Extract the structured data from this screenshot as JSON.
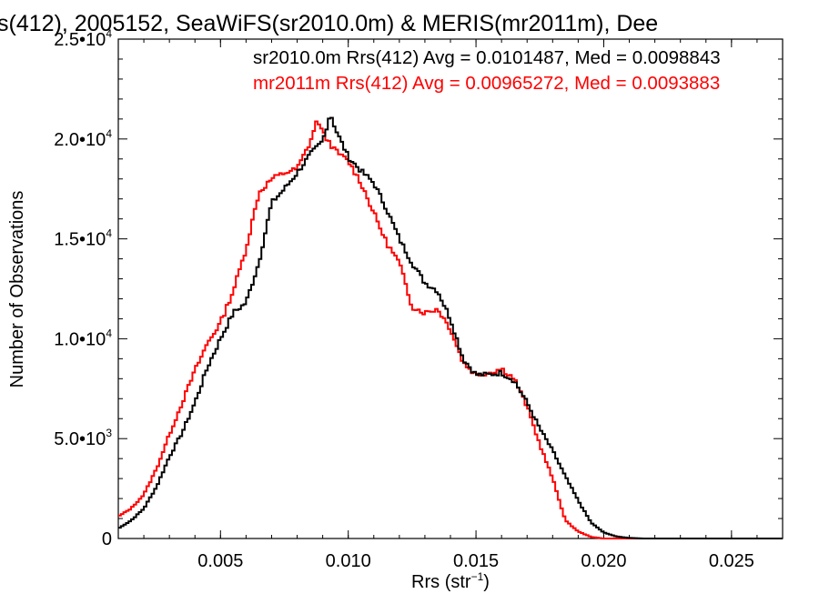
{
  "chart_data": {
    "type": "line",
    "title": "s(412), 2005152, SeaWiFS(sr2010.0m) & MERIS(mr2011m), Dee",
    "xlabel": "Rrs (str",
    "xlabel_sup": "−1",
    "xlabel_close": ")",
    "ylabel": "Number of Observations",
    "xlim": [
      0.001,
      0.027
    ],
    "ylim": [
      0,
      25000
    ],
    "grid": false,
    "x_ticks": [
      {
        "value": 0.005,
        "label": "0.005"
      },
      {
        "value": 0.01,
        "label": "0.010"
      },
      {
        "value": 0.015,
        "label": "0.015"
      },
      {
        "value": 0.02,
        "label": "0.020"
      },
      {
        "value": 0.025,
        "label": "0.025"
      }
    ],
    "y_ticks": [
      {
        "value": 0,
        "mant": "0",
        "exp": ""
      },
      {
        "value": 5000,
        "mant": "5.0•10",
        "exp": "3"
      },
      {
        "value": 10000,
        "mant": "1.0•10",
        "exp": "4"
      },
      {
        "value": 15000,
        "mant": "1.5•10",
        "exp": "4"
      },
      {
        "value": 20000,
        "mant": "2.0•10",
        "exp": "4"
      },
      {
        "value": 25000,
        "mant": "2.5•10",
        "exp": "4"
      }
    ],
    "legend": [
      {
        "text": "sr2010.0m Rrs(412) Avg = 0.0101487, Med = 0.0098843",
        "color": "#000000"
      },
      {
        "text": "mr2011m Rrs(412) Avg = 0.00965272, Med = 0.0093883",
        "color": "#ff0000"
      }
    ],
    "legend_placement": "top-right",
    "series": [
      {
        "color": "#000000",
        "x": [
          0.001,
          0.0015,
          0.002,
          0.0025,
          0.003,
          0.0035,
          0.004,
          0.0045,
          0.005,
          0.0055,
          0.006,
          0.0065,
          0.007,
          0.0075,
          0.008,
          0.0085,
          0.009,
          0.0093,
          0.0095,
          0.01,
          0.0105,
          0.011,
          0.0115,
          0.012,
          0.0125,
          0.013,
          0.0135,
          0.014,
          0.0145,
          0.015,
          0.0155,
          0.016,
          0.0165,
          0.017,
          0.0175,
          0.018,
          0.0185,
          0.019,
          0.0195,
          0.02,
          0.0205,
          0.021,
          0.0215,
          0.022,
          0.023,
          0.025,
          0.027
        ],
        "y": [
          500,
          900,
          1500,
          2600,
          4100,
          5300,
          6800,
          8600,
          10000,
          11300,
          11800,
          13800,
          16800,
          17500,
          18300,
          19200,
          19900,
          21300,
          20500,
          19100,
          18400,
          17800,
          16500,
          15000,
          13800,
          12800,
          12400,
          11000,
          9000,
          8200,
          8200,
          8300,
          7900,
          6800,
          5500,
          4400,
          3100,
          1900,
          800,
          300,
          100,
          30,
          0,
          0,
          0,
          0,
          0
        ]
      },
      {
        "color": "#ff0000",
        "x": [
          0.001,
          0.0015,
          0.002,
          0.0025,
          0.003,
          0.0035,
          0.004,
          0.0045,
          0.005,
          0.0055,
          0.006,
          0.0065,
          0.007,
          0.0075,
          0.008,
          0.0085,
          0.0088,
          0.009,
          0.0095,
          0.01,
          0.0105,
          0.011,
          0.0115,
          0.012,
          0.0125,
          0.013,
          0.0135,
          0.014,
          0.0145,
          0.015,
          0.0155,
          0.016,
          0.0165,
          0.017,
          0.0175,
          0.018,
          0.0185,
          0.019,
          0.0195,
          0.02,
          0.0205,
          0.021,
          0.022,
          0.025,
          0.027
        ],
        "y": [
          1100,
          1500,
          2200,
          3500,
          5200,
          6800,
          8400,
          9800,
          10800,
          12400,
          14500,
          17300,
          18000,
          18300,
          18500,
          19800,
          21000,
          20300,
          19400,
          18900,
          17800,
          16300,
          14800,
          13800,
          11600,
          11300,
          11500,
          10500,
          8800,
          8200,
          8300,
          8500,
          8000,
          6600,
          4700,
          3000,
          900,
          350,
          80,
          0,
          0,
          0,
          0,
          0,
          0
        ]
      }
    ]
  }
}
